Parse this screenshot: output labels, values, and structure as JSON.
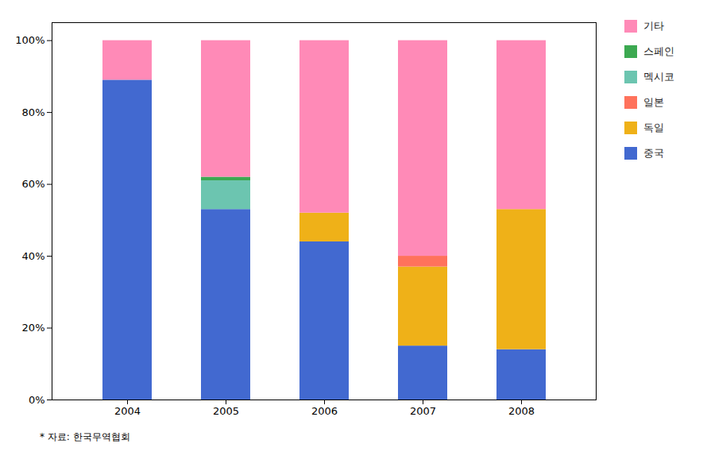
{
  "chart_data": {
    "type": "bar",
    "stacked": true,
    "categories": [
      "2004",
      "2005",
      "2006",
      "2007",
      "2008"
    ],
    "series": [
      {
        "name": "중국",
        "values": [
          89,
          53,
          44,
          15,
          14
        ]
      },
      {
        "name": "독일",
        "values": [
          0,
          0,
          8,
          22,
          39
        ]
      },
      {
        "name": "일본",
        "values": [
          0,
          0,
          0,
          3,
          0
        ]
      },
      {
        "name": "멕시코",
        "values": [
          0,
          8,
          0,
          0,
          0
        ]
      },
      {
        "name": "스페인",
        "values": [
          0,
          1,
          0,
          0,
          0
        ]
      },
      {
        "name": "기타",
        "values": [
          11,
          38,
          48,
          60,
          47
        ]
      }
    ],
    "ylim": [
      0,
      105
    ],
    "yticks": [
      {
        "value": 0,
        "label": "0%"
      },
      {
        "value": 20,
        "label": "20%"
      },
      {
        "value": 40,
        "label": "40%"
      },
      {
        "value": 60,
        "label": "60%"
      },
      {
        "value": 80,
        "label": "80%"
      },
      {
        "value": 100,
        "label": "100%"
      }
    ],
    "grid": false,
    "legend": "right",
    "caption": "* 자료:  한국무역협회"
  }
}
